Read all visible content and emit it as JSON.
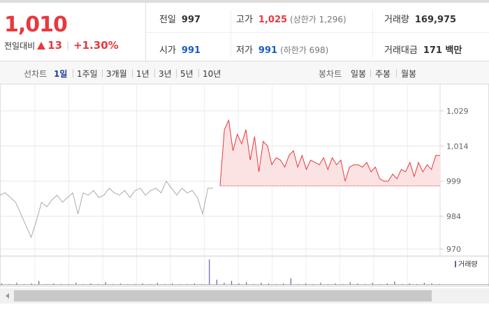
{
  "quote": {
    "price": "1,010",
    "change_label": "전일대비",
    "change": 13,
    "change_pct": "+1.30%"
  },
  "info": [
    [
      {
        "label": "전일",
        "value": 997
      },
      {
        "label": "고가",
        "value": "1,025",
        "note": "(상한가 1,296)"
      },
      {
        "label": "거래량",
        "value": "169,975"
      }
    ],
    [
      {
        "label": "시가",
        "value": 991
      },
      {
        "label": "저가",
        "value": 991,
        "note": "(하한가 698)"
      },
      {
        "label": "거래대금",
        "value": "171 백만"
      }
    ]
  ],
  "tabs": {
    "line_label": "선차트",
    "line": [
      "1일",
      "1주일",
      "3개월",
      "1년",
      "3년",
      "5년",
      "10년"
    ],
    "candle_label": "봉차트",
    "candle": [
      "일봉",
      "주봉",
      "월봉"
    ]
  },
  "chart_data": {
    "type": "line",
    "ylim": [
      967,
      1040
    ],
    "yticks": [
      970,
      984,
      999,
      {
        "value": 1014,
        "label": "1,014"
      },
      {
        "value": 1029,
        "label": "1,029"
      }
    ],
    "series": [
      {
        "color": "#aaaaaa",
        "values": [
          993,
          994,
          992,
          990,
          985,
          980,
          975,
          982,
          990,
          988,
          991,
          993,
          990,
          992,
          994,
          985,
          994,
          993,
          995,
          992,
          993,
          996,
          994,
          993,
          995,
          992,
          995,
          996,
          993,
          995,
          996,
          994,
          999,
          996,
          993,
          996,
          994,
          995,
          992,
          985,
          996,
          996
        ]
      },
      {
        "color": "#e8383d",
        "values": [
          997,
          1021,
          1025,
          1012,
          1019,
          1015,
          1021,
          1008,
          1018,
          1003,
          1016,
          1014,
          1006,
          1009,
          1008,
          1005,
          1010,
          1012,
          1005,
          1010,
          1004,
          1008,
          1007,
          1006,
          1009,
          1004,
          1009,
          1006,
          1008,
          999,
          1005,
          1006,
          1006,
          1005,
          1007,
          1003,
          1005,
          1000,
          999,
          999,
          1002,
          1000,
          1004,
          1003,
          1007,
          1001,
          1007,
          1003,
          1006,
          1004,
          1010,
          1010
        ]
      }
    ],
    "volume": {
      "name": "거래량",
      "color": "#6b5ca5",
      "values": [
        2,
        1,
        3,
        1,
        2,
        6,
        1,
        2,
        1,
        1,
        3,
        1,
        2,
        1,
        4,
        1,
        2,
        1,
        1,
        2,
        1,
        3,
        1,
        2,
        1,
        1,
        2,
        1,
        40,
        8,
        3,
        6,
        2,
        4,
        1,
        3,
        2,
        1,
        2,
        10,
        1,
        2,
        1,
        3,
        1,
        2,
        1,
        4,
        2,
        1,
        3,
        1,
        2,
        5,
        1,
        2,
        1,
        3,
        2,
        1
      ]
    }
  }
}
